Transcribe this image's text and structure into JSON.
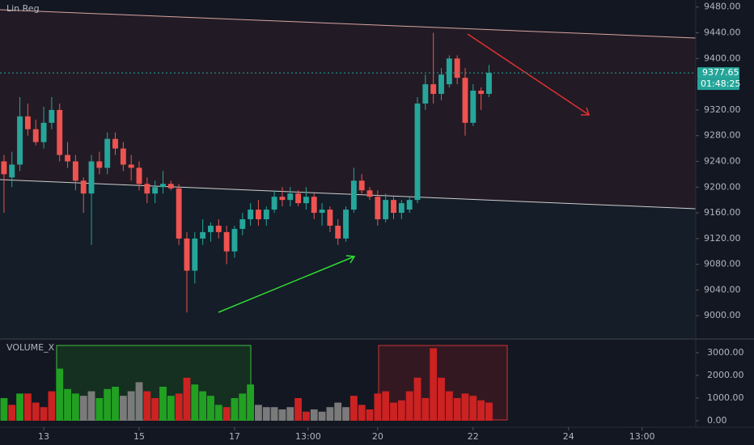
{
  "chart_data": {
    "type": "candlestick",
    "title": "Lin Reg",
    "volume_title": "VOLUME_X",
    "last_price": 9377.65,
    "countdown": "01:48:25",
    "up_color": "#26a69a",
    "down_color": "#ef5350",
    "grid": false,
    "open": [
      9240,
      9215,
      9235,
      9310,
      9290,
      9270,
      9300,
      9320,
      9250,
      9240,
      9210,
      9190,
      9240,
      9230,
      9275,
      9260,
      9235,
      9230,
      9205,
      9190,
      9200,
      9205,
      9198,
      9120,
      9070,
      9120,
      9130,
      9140,
      9130,
      9100,
      9135,
      9150,
      9165,
      9150,
      9165,
      9185,
      9180,
      9190,
      9175,
      9185,
      9160,
      9165,
      9140,
      9120,
      9165,
      9210,
      9195,
      9185,
      9150,
      9180,
      9160,
      9165,
      9180,
      9330,
      9360,
      9345,
      9360,
      9400,
      9370,
      9300,
      9350,
      9345
    ],
    "high": [
      9250,
      9255,
      9340,
      9330,
      9305,
      9325,
      9340,
      9330,
      9270,
      9250,
      9215,
      9250,
      9255,
      9285,
      9285,
      9270,
      9250,
      9240,
      9215,
      9210,
      9225,
      9210,
      9205,
      9130,
      9130,
      9150,
      9145,
      9150,
      9140,
      9140,
      9160,
      9175,
      9180,
      9170,
      9195,
      9200,
      9200,
      9195,
      9200,
      9190,
      9175,
      9170,
      9150,
      9170,
      9230,
      9220,
      9200,
      9195,
      9190,
      9185,
      9180,
      9185,
      9340,
      9375,
      9440,
      9385,
      9405,
      9405,
      9385,
      9360,
      9355,
      9390
    ],
    "low": [
      9160,
      9200,
      9225,
      9280,
      9265,
      9260,
      9290,
      9240,
      9230,
      9195,
      9160,
      9110,
      9220,
      9220,
      9250,
      9225,
      9210,
      9195,
      9175,
      9175,
      9190,
      9195,
      9110,
      9005,
      9050,
      9110,
      9115,
      9120,
      9080,
      9090,
      9125,
      9140,
      9140,
      9140,
      9160,
      9170,
      9170,
      9170,
      9165,
      9150,
      9140,
      9130,
      9110,
      9115,
      9160,
      9190,
      9180,
      9140,
      9145,
      9150,
      9150,
      9160,
      9175,
      9320,
      9330,
      9335,
      9355,
      9360,
      9280,
      9295,
      9320,
      9340
    ],
    "close": [
      9220,
      9235,
      9310,
      9290,
      9270,
      9300,
      9320,
      9250,
      9240,
      9210,
      9190,
      9240,
      9230,
      9275,
      9260,
      9235,
      9230,
      9205,
      9190,
      9200,
      9205,
      9198,
      9120,
      9070,
      9120,
      9130,
      9140,
      9130,
      9100,
      9135,
      9150,
      9165,
      9150,
      9165,
      9185,
      9180,
      9190,
      9175,
      9185,
      9160,
      9165,
      9140,
      9120,
      9165,
      9210,
      9195,
      9185,
      9150,
      9180,
      9160,
      9175,
      9180,
      9330,
      9360,
      9345,
      9375,
      9400,
      9370,
      9300,
      9350,
      9345,
      9377.65
    ],
    "volume": {
      "values": [
        1000,
        700,
        1200,
        1200,
        800,
        600,
        1300,
        2300,
        1400,
        1200,
        1100,
        1300,
        1000,
        1400,
        1500,
        1100,
        1300,
        1700,
        1300,
        1000,
        1500,
        1100,
        1200,
        1900,
        1600,
        1300,
        1100,
        700,
        600,
        1000,
        1200,
        1600,
        700,
        600,
        600,
        500,
        600,
        1000,
        400,
        500,
        400,
        600,
        800,
        600,
        1100,
        700,
        500,
        1200,
        1300,
        800,
        900,
        1300,
        1900,
        1000,
        3200,
        1900,
        1300,
        1000,
        1200,
        1100,
        900,
        800
      ],
      "colors": [
        "#22a022",
        "#cc2222",
        "#22a022",
        "#cc2222",
        "#cc2222",
        "#cc2222",
        "#cc2222",
        "#22a022",
        "#22a022",
        "#22a022",
        "#7a7a7a",
        "#7a7a7a",
        "#22a022",
        "#22a022",
        "#22a022",
        "#7a7a7a",
        "#7a7a7a",
        "#7a7a7a",
        "#cc2222",
        "#cc2222",
        "#22a022",
        "#22a022",
        "#cc2222",
        "#cc2222",
        "#22a022",
        "#22a022",
        "#22a022",
        "#22a022",
        "#cc2222",
        "#22a022",
        "#22a022",
        "#22a022",
        "#7a7a7a",
        "#7a7a7a",
        "#7a7a7a",
        "#7a7a7a",
        "#7a7a7a",
        "#cc2222",
        "#cc2222",
        "#7a7a7a",
        "#7a7a7a",
        "#7a7a7a",
        "#7a7a7a",
        "#7a7a7a",
        "#cc2222",
        "#cc2222",
        "#cc2222",
        "#cc2222",
        "#cc2222",
        "#cc2222",
        "#cc2222",
        "#cc2222",
        "#cc2222",
        "#cc2222",
        "#cc2222",
        "#cc2222",
        "#cc2222",
        "#cc2222",
        "#cc2222",
        "#cc2222",
        "#cc2222",
        "#cc2222"
      ]
    },
    "xlim": [
      -0.5,
      87
    ],
    "xticks": [
      {
        "value": 5,
        "label": "13"
      },
      {
        "value": 17,
        "label": "15"
      },
      {
        "value": 29,
        "label": "17"
      },
      {
        "value": 38.25,
        "label": "13:00"
      },
      {
        "value": 47,
        "label": "20"
      },
      {
        "value": 59,
        "label": "22"
      },
      {
        "value": 71,
        "label": "24"
      },
      {
        "value": 80.25,
        "label": "13:00"
      }
    ],
    "ylim": [
      8965,
      9491
    ],
    "yticks": [
      {
        "value": 9000,
        "label": "9000.00"
      },
      {
        "value": 9040,
        "label": "9040.00"
      },
      {
        "value": 9080,
        "label": "9080.00"
      },
      {
        "value": 9120,
        "label": "9120.00"
      },
      {
        "value": 9160,
        "label": "9160.00"
      },
      {
        "value": 9200,
        "label": "9200.00"
      },
      {
        "value": 9240,
        "label": "9240.00"
      },
      {
        "value": 9280,
        "label": "9280.00"
      },
      {
        "value": 9320,
        "label": "9320.00"
      },
      {
        "value": 9400,
        "label": "9400.00"
      },
      {
        "value": 9440,
        "label": "9440.00"
      },
      {
        "value": 9480,
        "label": "9480.00"
      }
    ],
    "y2lim": [
      -286,
      3571
    ],
    "y2ticks": [
      {
        "value": 0,
        "label": "0.00"
      },
      {
        "value": 1000,
        "label": "1000.00"
      },
      {
        "value": 2000,
        "label": "2000.00"
      },
      {
        "value": 3000,
        "label": "3000.00"
      }
    ]
  }
}
